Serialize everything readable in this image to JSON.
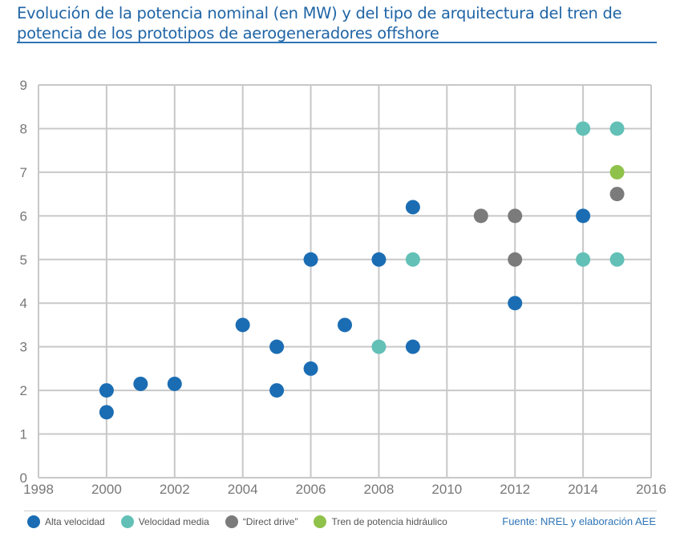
{
  "chart_data": {
    "type": "scatter",
    "title": "Evolución de la potencia nominal (en MW) y del tipo de arquitectura del tren de potencia de los prototipos de aerogeneradores offshore",
    "xlim": [
      1998,
      2016
    ],
    "ylim": [
      0,
      9
    ],
    "x_ticks": [
      1998,
      2000,
      2002,
      2004,
      2006,
      2008,
      2010,
      2012,
      2014,
      2016
    ],
    "y_ticks": [
      0,
      1,
      2,
      3,
      4,
      5,
      6,
      7,
      8,
      9
    ],
    "grid": true,
    "legend_position": "bottom",
    "series": [
      {
        "name": "Alta velocidad",
        "color": "#1b6db3",
        "points": [
          [
            2000,
            2
          ],
          [
            2000,
            1.5
          ],
          [
            2001,
            2.15
          ],
          [
            2002,
            2.15
          ],
          [
            2004,
            3.5
          ],
          [
            2005,
            3
          ],
          [
            2005,
            2
          ],
          [
            2006,
            5
          ],
          [
            2006,
            2.5
          ],
          [
            2007,
            3.5
          ],
          [
            2008,
            5
          ],
          [
            2009,
            6.2
          ],
          [
            2009,
            3
          ],
          [
            2012,
            4
          ],
          [
            2014,
            6
          ]
        ]
      },
      {
        "name": "Velocidad media",
        "color": "#62c0b7",
        "points": [
          [
            2008,
            3
          ],
          [
            2009,
            5
          ],
          [
            2014,
            8
          ],
          [
            2015,
            8
          ],
          [
            2014,
            5
          ],
          [
            2015,
            5
          ]
        ]
      },
      {
        "name": "“Direct drive”",
        "color": "#7b7b7b",
        "points": [
          [
            2011,
            6
          ],
          [
            2012,
            6
          ],
          [
            2012,
            5
          ],
          [
            2015,
            6.5
          ]
        ]
      },
      {
        "name": "Tren de potencia hidráulico",
        "color": "#8fc24a",
        "points": [
          [
            2015,
            7
          ]
        ]
      }
    ],
    "source": "Fuente: NREL y elaboración AEE"
  }
}
